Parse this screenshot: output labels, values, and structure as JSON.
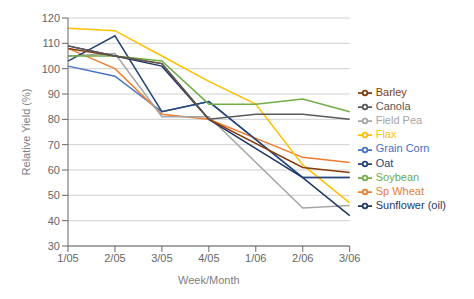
{
  "chart_data": {
    "type": "line",
    "xlabel": "Week/Month",
    "ylabel": "Relative Yield (%)",
    "categories": [
      "1/05",
      "2/05",
      "3/05",
      "4/05",
      "1/06",
      "2/06",
      "3/06"
    ],
    "series": [
      {
        "name": "Grain Corn",
        "color": "#4472C4",
        "values": [
          101,
          97,
          83,
          87,
          null,
          57,
          57
        ]
      },
      {
        "name": "Sp Wheat",
        "color": "#ED7D31",
        "values": [
          108,
          100,
          82,
          80,
          null,
          65,
          63
        ]
      },
      {
        "name": "Field Pea",
        "color": "#A5A5A5",
        "values": [
          105,
          106,
          81,
          81,
          null,
          45,
          46
        ]
      },
      {
        "name": "Flax",
        "color": "#FFC000",
        "values": [
          116,
          115,
          105,
          95,
          86,
          62,
          47
        ]
      },
      {
        "name": "Oat",
        "color": "#264478",
        "values": [
          103,
          113,
          83,
          87,
          null,
          57,
          57
        ]
      },
      {
        "name": "Soybean",
        "color": "#70AD47",
        "values": [
          105,
          105,
          103,
          86,
          86,
          88,
          83
        ]
      },
      {
        "name": "Sunflower (oil)",
        "color": "#1F3864",
        "values": [
          109,
          105,
          101,
          80,
          null,
          57,
          42
        ]
      },
      {
        "name": "Barley",
        "color": "#843C0C",
        "values": [
          108,
          105,
          102,
          80,
          null,
          61,
          59
        ]
      },
      {
        "name": "Canola",
        "color": "#595959",
        "values": [
          109,
          105,
          102,
          80,
          82,
          82,
          80
        ]
      }
    ],
    "ylim": [
      30,
      120
    ],
    "yticks": [
      30,
      40,
      50,
      60,
      70,
      80,
      90,
      100,
      110,
      120
    ],
    "grid": true,
    "legend": "right",
    "line_style": "solid",
    "marker": "none"
  }
}
